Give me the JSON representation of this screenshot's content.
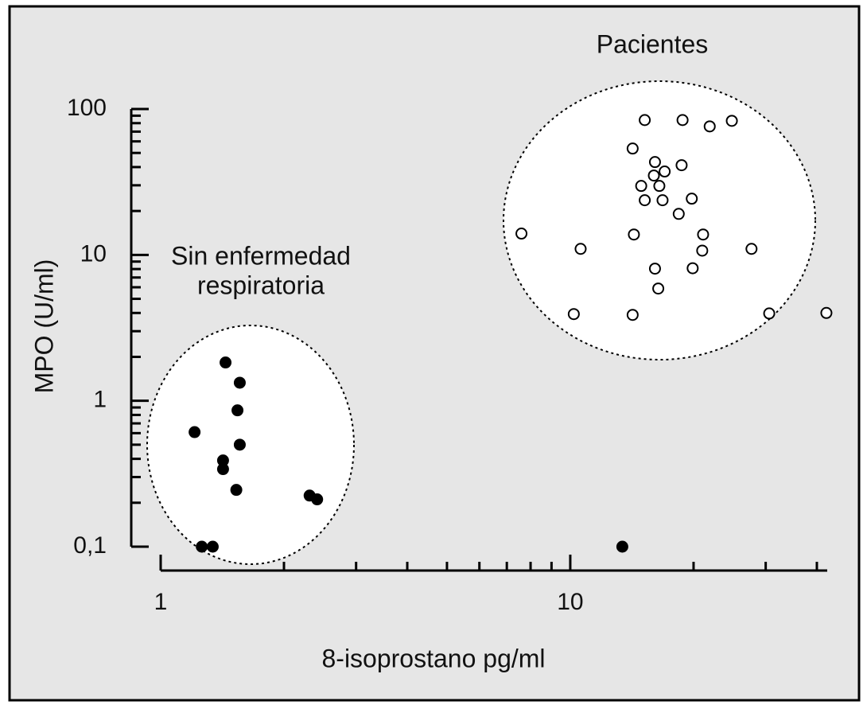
{
  "chart_data": {
    "type": "scatter",
    "x_label": "8-isoprostano pg/ml",
    "y_label": "MPO (U/ml)",
    "annotations": [
      "Pacientes",
      "Sin enfermedad",
      "respiratoria"
    ],
    "xscale": "log",
    "yscale": "log",
    "xlim": [
      1,
      42.4
    ],
    "ylim": [
      0.1,
      100
    ],
    "xticks": [
      1,
      10
    ],
    "yticks": [
      {
        "value": 0.1,
        "label": "0,1"
      },
      1,
      10,
      100
    ],
    "xminorticks": [
      2,
      3,
      4,
      5,
      6,
      7,
      8,
      9,
      20,
      30,
      40
    ],
    "yminorticks": [
      0.2,
      0.3,
      0.4,
      0.5,
      0.6,
      0.7,
      0.8,
      0.9,
      2,
      3,
      4,
      5,
      6,
      7,
      8,
      9,
      20,
      30,
      40,
      50,
      60,
      70,
      80,
      90
    ],
    "series": [
      {
        "color": "#000000",
        "facecolor": "#000000",
        "x": [
          1.44,
          1.56,
          1.54,
          1.21,
          1.56,
          1.42,
          1.42,
          1.53,
          2.31,
          2.41,
          1.26,
          1.34,
          13.4
        ],
        "values": [
          1.83,
          1.33,
          0.86,
          0.61,
          0.5,
          0.39,
          0.34,
          0.245,
          0.224,
          0.211,
          0.1,
          0.1,
          0.1
        ]
      },
      {
        "color": "#000000",
        "facecolor": "#ffffff",
        "x": [
          15.2,
          18.8,
          21.9,
          24.8,
          14.2,
          16.1,
          18.7,
          17.0,
          16.0,
          14.9,
          16.5,
          15.2,
          16.8,
          19.8,
          18.4,
          7.6,
          14.3,
          21.1,
          10.6,
          21.0,
          27.7,
          16.1,
          19.9,
          16.4,
          10.2,
          14.2,
          30.6,
          42.2
        ],
        "values": [
          84,
          84,
          76,
          83,
          53.6,
          43.3,
          41.2,
          37.3,
          35.0,
          29.7,
          29.7,
          23.7,
          23.7,
          24.3,
          19.1,
          14.0,
          13.8,
          13.8,
          11.0,
          10.7,
          11.0,
          8.05,
          8.1,
          5.88,
          3.93,
          3.88,
          3.97,
          4.0
        ]
      }
    ]
  }
}
